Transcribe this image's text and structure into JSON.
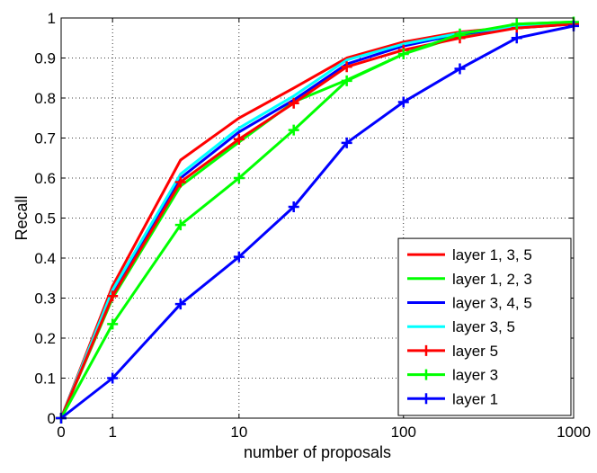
{
  "chart_data": {
    "type": "line",
    "xlabel": "number of proposals",
    "ylabel": "Recall",
    "x_scale": "log(1+x)",
    "xlim": [
      0,
      1000
    ],
    "ylim": [
      0,
      1
    ],
    "grid": true,
    "legend_position": "bottom-right",
    "x_ticks": [
      0,
      1,
      10,
      100,
      1000
    ],
    "x_tick_labels": [
      "0",
      "1",
      "10",
      "100",
      "1000"
    ],
    "y_ticks": [
      0,
      0.1,
      0.2,
      0.3,
      0.4,
      0.5,
      0.6,
      0.7,
      0.8,
      0.9,
      1
    ],
    "y_tick_labels": [
      "0",
      "0.1",
      "0.2",
      "0.3",
      "0.4",
      "0.5",
      "0.6",
      "0.7",
      "0.8",
      "0.9",
      "1"
    ],
    "x": [
      0,
      1,
      4,
      10,
      22,
      46,
      100,
      215,
      464,
      1000
    ],
    "series": [
      {
        "name": "layer 1, 3, 5",
        "color": "#ff0000",
        "marker": "none",
        "values": [
          0,
          0.33,
          0.645,
          0.75,
          0.825,
          0.9,
          0.94,
          0.965,
          0.978,
          0.985
        ]
      },
      {
        "name": "layer 1, 2, 3",
        "color": "#00ff00",
        "marker": "none",
        "values": [
          0,
          0.3,
          0.58,
          0.69,
          0.79,
          0.845,
          0.91,
          0.955,
          0.985,
          0.99
        ]
      },
      {
        "name": "layer 3, 4, 5",
        "color": "#0000ff",
        "marker": "none",
        "values": [
          0,
          0.315,
          0.6,
          0.715,
          0.795,
          0.885,
          0.93,
          0.96,
          0.975,
          0.985
        ]
      },
      {
        "name": "layer 3, 5",
        "color": "#00ffff",
        "marker": "none",
        "values": [
          0,
          0.32,
          0.61,
          0.725,
          0.805,
          0.895,
          0.935,
          0.962,
          0.978,
          0.987
        ]
      },
      {
        "name": "layer 5",
        "color": "#ff0000",
        "marker": "plus",
        "values": [
          0,
          0.305,
          0.59,
          0.697,
          0.787,
          0.878,
          0.92,
          0.95,
          0.975,
          0.985
        ]
      },
      {
        "name": "layer 3",
        "color": "#00ff00",
        "marker": "plus",
        "values": [
          0,
          0.235,
          0.483,
          0.6,
          0.72,
          0.843,
          0.91,
          0.96,
          0.985,
          0.99
        ]
      },
      {
        "name": "layer 1",
        "color": "#0000ff",
        "marker": "plus",
        "values": [
          0,
          0.1,
          0.285,
          0.403,
          0.528,
          0.688,
          0.79,
          0.873,
          0.95,
          0.98
        ]
      }
    ]
  }
}
